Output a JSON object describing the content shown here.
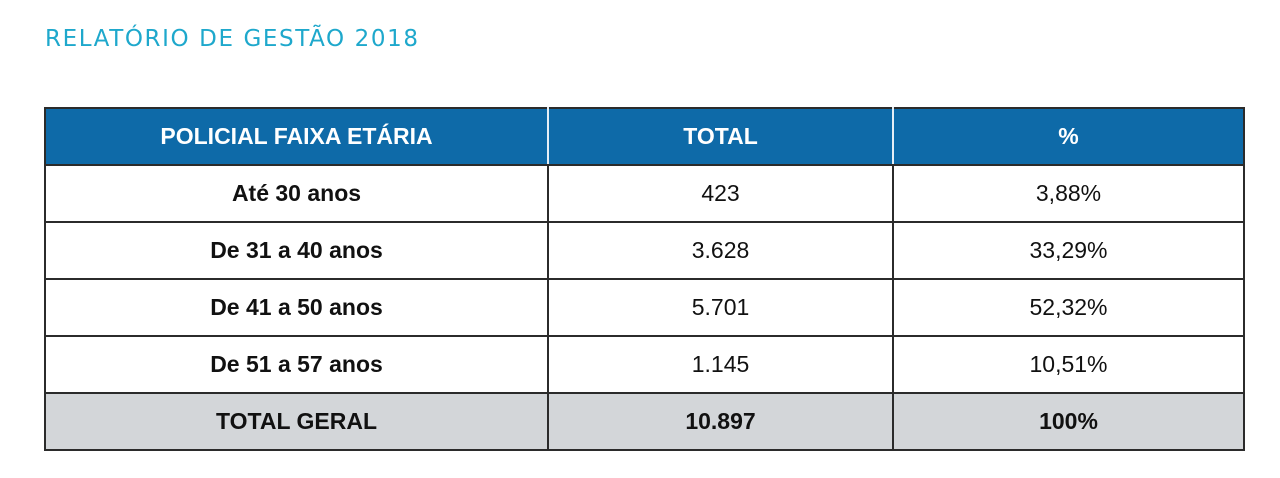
{
  "header": {
    "title": "RELATÓRIO DE GESTÃO 2018"
  },
  "table": {
    "columns": [
      "POLICIAL FAIXA ETÁRIA",
      "TOTAL",
      "%"
    ],
    "rows": [
      {
        "label": "Até 30 anos",
        "total": "423",
        "percent": "3,88%"
      },
      {
        "label": "De 31 a 40 anos",
        "total": "3.628",
        "percent": "33,29%"
      },
      {
        "label": "De 41 a 50 anos",
        "total": "5.701",
        "percent": "52,32%"
      },
      {
        "label": "De 51 a 57 anos",
        "total": "1.145",
        "percent": "10,51%"
      }
    ],
    "total_row": {
      "label": "TOTAL GERAL",
      "total": "10.897",
      "percent": "100%"
    }
  },
  "colors": {
    "title": "#1ea8cc",
    "header_background": "#0e6aa8",
    "header_text": "#ffffff",
    "total_row_background": "#d3d6d9"
  }
}
